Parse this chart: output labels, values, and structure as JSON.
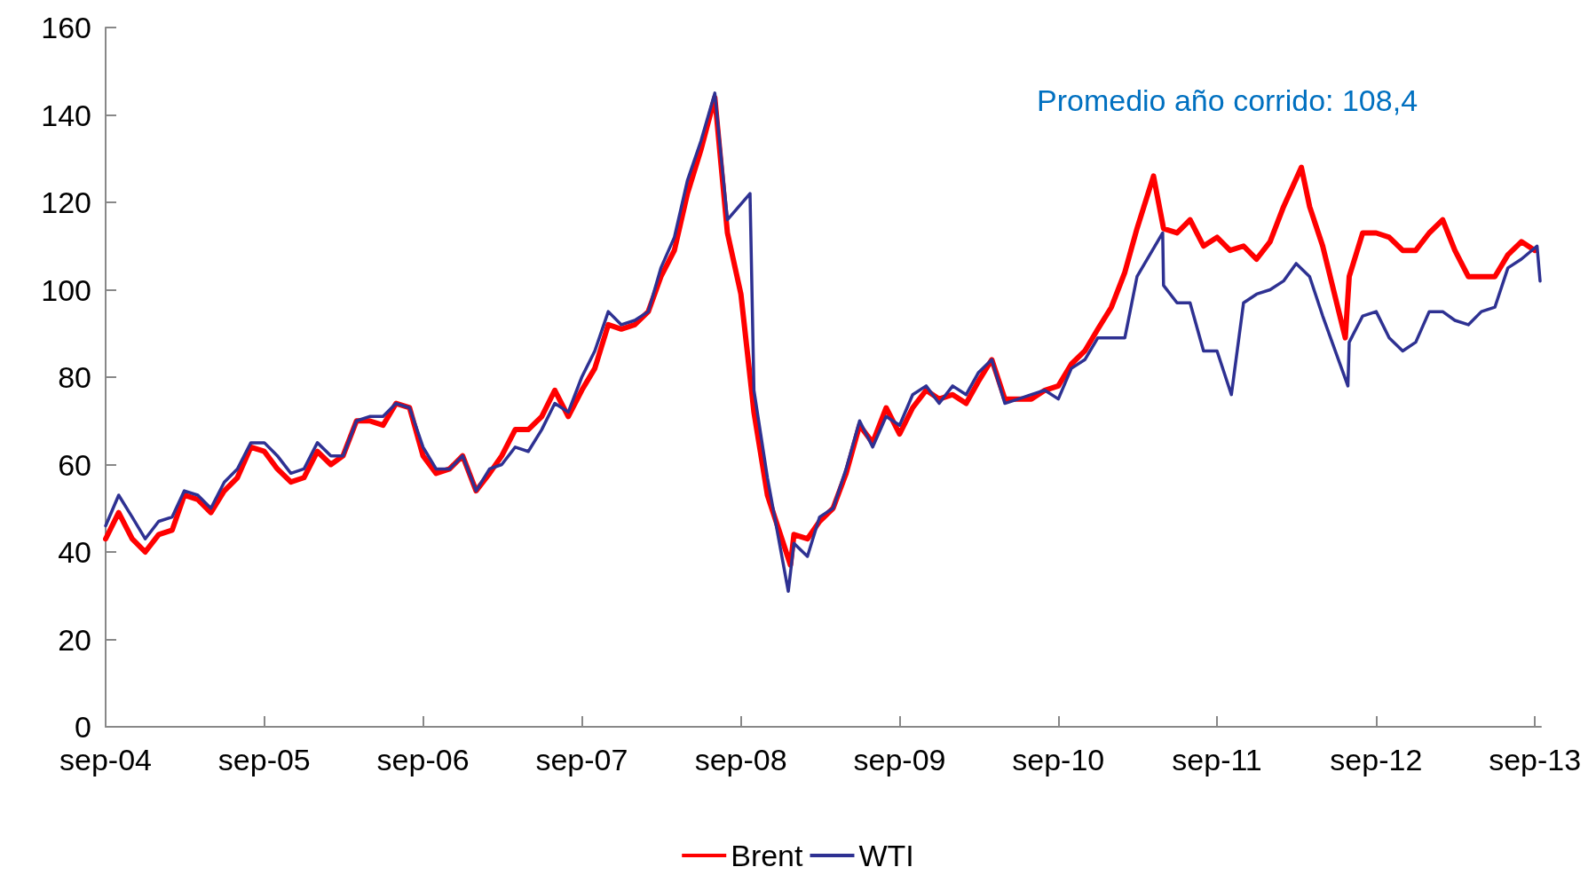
{
  "chart_data": {
    "type": "line",
    "annotations": [
      "Promedio año corrido: 108,4"
    ],
    "xlim": [
      "2004-09",
      "2013-09-15"
    ],
    "xticks": [
      {
        "value": "2004-09",
        "label": "sep-04"
      },
      {
        "value": "2005-09",
        "label": "sep-05"
      },
      {
        "value": "2006-09",
        "label": "sep-06"
      },
      {
        "value": "2007-09",
        "label": "sep-07"
      },
      {
        "value": "2008-09",
        "label": "sep-08"
      },
      {
        "value": "2009-09",
        "label": "sep-09"
      },
      {
        "value": "2010-09",
        "label": "sep-10"
      },
      {
        "value": "2011-09",
        "label": "sep-11"
      },
      {
        "value": "2012-09",
        "label": "sep-12"
      },
      {
        "value": "2013-09",
        "label": "sep-13"
      }
    ],
    "ylim": [
      0,
      160
    ],
    "yticks": [
      0,
      20,
      40,
      60,
      80,
      100,
      120,
      140,
      160
    ],
    "grid": false,
    "legend": "bottom",
    "series": [
      {
        "name": "Brent",
        "color": "#ff0000",
        "x": [
          "2004-09",
          "2004-10",
          "2004-11",
          "2004-12",
          "2005-01",
          "2005-02",
          "2005-03",
          "2005-04",
          "2005-05",
          "2005-06",
          "2005-07",
          "2005-08",
          "2005-09",
          "2005-10",
          "2005-11",
          "2005-12",
          "2006-01",
          "2006-02",
          "2006-03",
          "2006-04",
          "2006-05",
          "2006-06",
          "2006-07",
          "2006-08",
          "2006-09",
          "2006-10",
          "2006-11",
          "2006-12",
          "2007-01",
          "2007-02",
          "2007-03",
          "2007-04",
          "2007-05",
          "2007-06",
          "2007-07",
          "2007-08",
          "2007-09",
          "2007-10",
          "2007-11",
          "2007-12",
          "2008-01",
          "2008-02",
          "2008-03",
          "2008-04",
          "2008-05",
          "2008-06",
          "2008-07-03",
          "2008-08",
          "2008-09",
          "2008-10",
          "2008-11",
          "2008-12-24",
          "2009-01",
          "2009-02",
          "2009-03",
          "2009-04",
          "2009-05",
          "2009-06",
          "2009-07",
          "2009-08",
          "2009-09",
          "2009-10",
          "2009-11",
          "2009-12",
          "2010-01",
          "2010-02",
          "2010-03",
          "2010-04",
          "2010-05",
          "2010-06",
          "2010-07",
          "2010-08",
          "2010-09",
          "2010-10",
          "2010-11",
          "2010-12",
          "2011-01",
          "2011-02",
          "2011-03",
          "2011-04-08",
          "2011-05",
          "2011-06",
          "2011-07",
          "2011-08",
          "2011-09",
          "2011-10",
          "2011-11",
          "2011-12",
          "2012-01",
          "2012-02",
          "2012-03-13",
          "2012-04",
          "2012-05",
          "2012-06-22",
          "2012-07",
          "2012-08",
          "2012-09",
          "2012-10",
          "2012-11",
          "2012-12",
          "2013-01",
          "2013-02",
          "2013-03",
          "2013-04",
          "2013-05",
          "2013-06",
          "2013-07",
          "2013-08",
          "2013-09"
        ],
        "values": [
          43,
          49,
          43,
          40,
          44,
          45,
          53,
          52,
          49,
          54,
          57,
          64,
          63,
          59,
          56,
          57,
          63,
          60,
          62,
          70,
          70,
          69,
          74,
          73,
          62,
          58,
          59,
          62,
          54,
          58,
          62,
          68,
          68,
          71,
          77,
          71,
          77,
          82,
          92,
          91,
          92,
          95,
          103,
          109,
          122,
          132,
          144,
          113,
          99,
          72,
          53,
          37,
          44,
          43,
          47,
          50,
          58,
          69,
          65,
          73,
          67,
          73,
          77,
          75,
          76,
          74,
          79,
          84,
          75,
          75,
          75,
          77,
          78,
          83,
          86,
          91,
          96,
          104,
          114,
          126,
          114,
          113,
          116,
          110,
          112,
          109,
          110,
          107,
          111,
          119,
          128,
          119,
          110,
          89,
          103,
          113,
          113,
          112,
          109,
          109,
          113,
          116,
          109,
          103,
          103,
          103,
          108,
          111,
          109
        ]
      },
      {
        "name": "WTI",
        "color": "#2e3192",
        "x": [
          "2004-09",
          "2004-10",
          "2004-11",
          "2004-12",
          "2005-01",
          "2005-02",
          "2005-03",
          "2005-04",
          "2005-05",
          "2005-06",
          "2005-07",
          "2005-08",
          "2005-09",
          "2005-10",
          "2005-11",
          "2005-12",
          "2006-01",
          "2006-02",
          "2006-03",
          "2006-04",
          "2006-05",
          "2006-06",
          "2006-07",
          "2006-08",
          "2006-09",
          "2006-10",
          "2006-11",
          "2006-12",
          "2007-01",
          "2007-02",
          "2007-03",
          "2007-04",
          "2007-05",
          "2007-06",
          "2007-07",
          "2007-08",
          "2007-09",
          "2007-10",
          "2007-11",
          "2007-12",
          "2008-01",
          "2008-02",
          "2008-03",
          "2008-04",
          "2008-05",
          "2008-06",
          "2008-07-03",
          "2008-08",
          "2008-09-22",
          "2008-10",
          "2008-11",
          "2008-12-19",
          "2009-01",
          "2009-02",
          "2009-03",
          "2009-04",
          "2009-05",
          "2009-06",
          "2009-07",
          "2009-08",
          "2009-09",
          "2009-10",
          "2009-11",
          "2009-12",
          "2010-01",
          "2010-02",
          "2010-03",
          "2010-04",
          "2010-05",
          "2010-06",
          "2010-07",
          "2010-08",
          "2010-09",
          "2010-10",
          "2010-11",
          "2010-12",
          "2011-01",
          "2011-02",
          "2011-03",
          "2011-04-29",
          "2011-05",
          "2011-06",
          "2011-07",
          "2011-08",
          "2011-09",
          "2011-10-04",
          "2011-11",
          "2011-12",
          "2012-01",
          "2012-02",
          "2012-03",
          "2012-04",
          "2012-05",
          "2012-06-28",
          "2012-07",
          "2012-08",
          "2012-09",
          "2012-10",
          "2012-11",
          "2012-12",
          "2013-01",
          "2013-02",
          "2013-03",
          "2013-04",
          "2013-05",
          "2013-06",
          "2013-07",
          "2013-08",
          "2013-09-06",
          "2013-09-13"
        ],
        "values": [
          46,
          53,
          48,
          43,
          47,
          48,
          54,
          53,
          50,
          56,
          59,
          65,
          65,
          62,
          58,
          59,
          65,
          62,
          62,
          70,
          71,
          71,
          74,
          73,
          64,
          59,
          59,
          62,
          54,
          59,
          60,
          64,
          63,
          68,
          74,
          72,
          80,
          86,
          95,
          92,
          93,
          95,
          105,
          112,
          125,
          134,
          145,
          116,
          122,
          77,
          57,
          31,
          42,
          39,
          48,
          50,
          59,
          70,
          64,
          71,
          69,
          76,
          78,
          74,
          78,
          76,
          81,
          84,
          74,
          75,
          76,
          77,
          75,
          82,
          84,
          89,
          89,
          89,
          103,
          113,
          101,
          97,
          97,
          86,
          86,
          76,
          97,
          99,
          100,
          102,
          106,
          103,
          94,
          78,
          88,
          94,
          95,
          89,
          86,
          88,
          95,
          95,
          93,
          92,
          95,
          96,
          105,
          107,
          110,
          102
        ]
      }
    ]
  }
}
